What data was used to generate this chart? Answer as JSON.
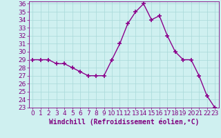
{
  "x": [
    0,
    1,
    2,
    3,
    4,
    5,
    6,
    7,
    8,
    9,
    10,
    11,
    12,
    13,
    14,
    15,
    16,
    17,
    18,
    19,
    20,
    21,
    22,
    23
  ],
  "y": [
    29,
    29,
    29,
    28.5,
    28.5,
    28,
    27.5,
    27,
    27,
    27,
    29,
    31,
    33.5,
    35,
    36,
    34,
    34.5,
    32,
    30,
    29,
    29,
    27,
    24.5,
    23
  ],
  "line_color": "#8b008b",
  "marker": "+",
  "marker_size": 4,
  "marker_linewidth": 1.2,
  "line_width": 1.0,
  "bg_color": "#cff0f0",
  "grid_color": "#a8d8d8",
  "xlabel": "Windchill (Refroidissement éolien,°C)",
  "ylim": [
    23,
    36
  ],
  "xlim": [
    -0.5,
    23.5
  ],
  "yticks": [
    23,
    24,
    25,
    26,
    27,
    28,
    29,
    30,
    31,
    32,
    33,
    34,
    35,
    36
  ],
  "xticks": [
    0,
    1,
    2,
    3,
    4,
    5,
    6,
    7,
    8,
    9,
    10,
    11,
    12,
    13,
    14,
    15,
    16,
    17,
    18,
    19,
    20,
    21,
    22,
    23
  ],
  "tick_fontsize": 6.5,
  "xlabel_fontsize": 7,
  "tick_color": "#800080",
  "axis_color": "#800080",
  "bottom_bar_color": "#800080"
}
